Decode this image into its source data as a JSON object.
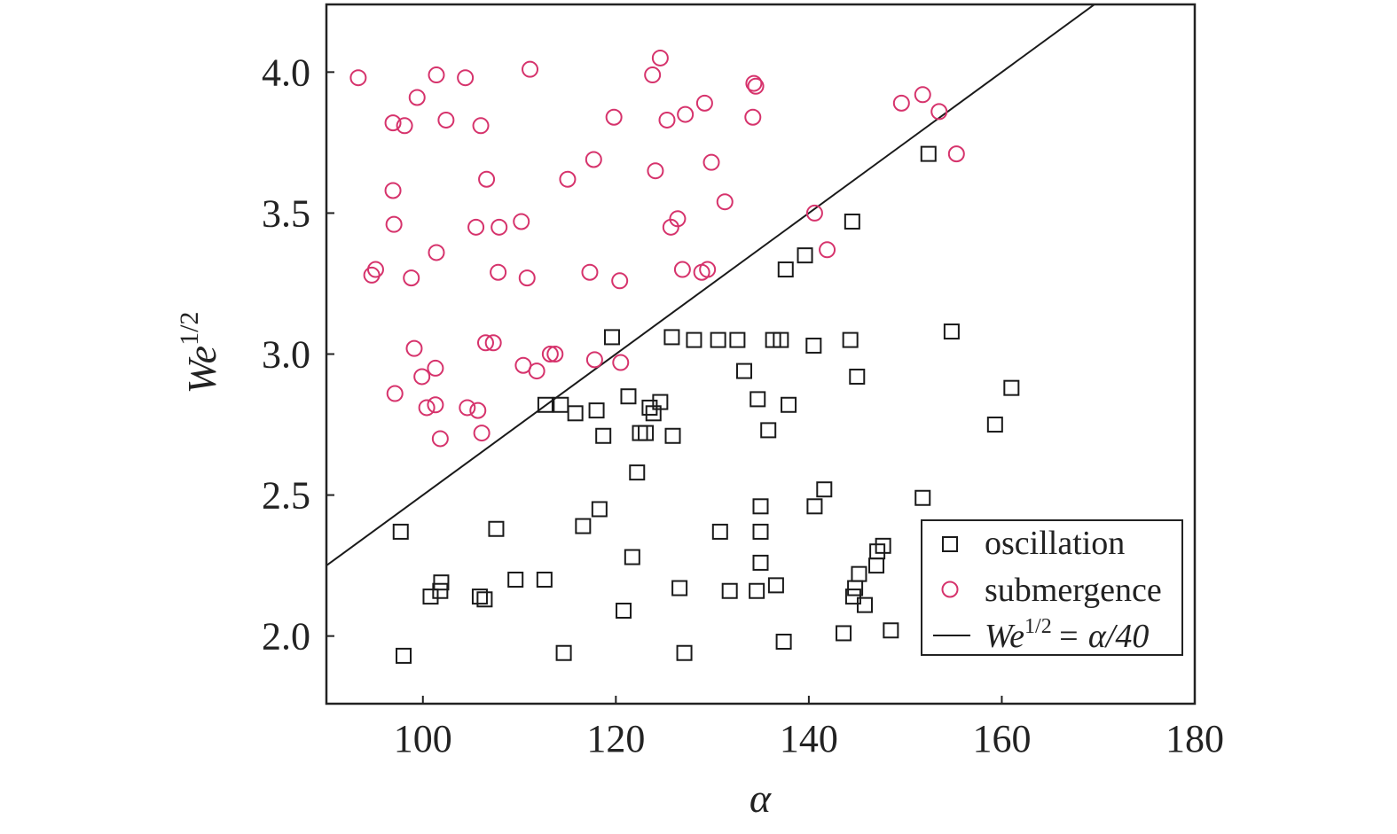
{
  "chart_data": {
    "type": "scatter",
    "xlabel": "α",
    "ylabel_base": "We",
    "ylabel_sup": "1/2",
    "xlim": [
      90,
      180
    ],
    "ylim": [
      1.76,
      4.24
    ],
    "xticks": [
      100,
      120,
      140,
      160,
      180
    ],
    "xtick_labels": [
      "100",
      "120",
      "140",
      "160",
      "180"
    ],
    "yticks": [
      2.0,
      2.5,
      3.0,
      3.5,
      4.0
    ],
    "ytick_labels": [
      "2.0",
      "2.5",
      "3.0",
      "3.5",
      "4.0"
    ],
    "grid": false,
    "legend_position": "bottom-right",
    "colors": {
      "oscillation": "#1a1a1a",
      "submergence": "#d6336c",
      "line": "#1a1a1a"
    },
    "series": [
      {
        "name": "oscillation",
        "marker": "square",
        "points": [
          [
            97.7,
            2.37
          ],
          [
            98.0,
            1.93
          ],
          [
            100.8,
            2.14
          ],
          [
            101.8,
            2.16
          ],
          [
            101.9,
            2.19
          ],
          [
            105.9,
            2.14
          ],
          [
            106.4,
            2.13
          ],
          [
            107.6,
            2.38
          ],
          [
            109.6,
            2.2
          ],
          [
            112.6,
            2.2
          ],
          [
            112.7,
            2.82
          ],
          [
            114.3,
            2.82
          ],
          [
            114.6,
            1.94
          ],
          [
            115.8,
            2.79
          ],
          [
            116.6,
            2.39
          ],
          [
            118.0,
            2.8
          ],
          [
            118.3,
            2.45
          ],
          [
            118.7,
            2.71
          ],
          [
            119.6,
            3.06
          ],
          [
            120.8,
            2.09
          ],
          [
            121.3,
            2.85
          ],
          [
            121.7,
            2.28
          ],
          [
            122.2,
            2.58
          ],
          [
            122.5,
            2.72
          ],
          [
            123.1,
            2.72
          ],
          [
            123.5,
            2.81
          ],
          [
            123.9,
            2.79
          ],
          [
            124.6,
            2.83
          ],
          [
            125.8,
            3.06
          ],
          [
            125.9,
            2.71
          ],
          [
            126.6,
            2.17
          ],
          [
            127.1,
            1.94
          ],
          [
            128.1,
            3.05
          ],
          [
            130.6,
            3.05
          ],
          [
            130.8,
            2.37
          ],
          [
            131.8,
            2.16
          ],
          [
            132.6,
            3.05
          ],
          [
            133.3,
            2.94
          ],
          [
            134.6,
            2.16
          ],
          [
            134.7,
            2.84
          ],
          [
            135.0,
            2.46
          ],
          [
            135.0,
            2.37
          ],
          [
            135.0,
            2.26
          ],
          [
            135.8,
            2.73
          ],
          [
            136.3,
            3.05
          ],
          [
            136.6,
            2.18
          ],
          [
            137.1,
            3.05
          ],
          [
            137.4,
            1.98
          ],
          [
            137.6,
            3.3
          ],
          [
            137.9,
            2.82
          ],
          [
            139.6,
            3.35
          ],
          [
            140.5,
            3.03
          ],
          [
            140.6,
            2.46
          ],
          [
            141.6,
            2.52
          ],
          [
            143.6,
            2.01
          ],
          [
            144.3,
            3.05
          ],
          [
            144.5,
            3.47
          ],
          [
            144.6,
            2.14
          ],
          [
            144.8,
            2.17
          ],
          [
            145.0,
            2.92
          ],
          [
            145.2,
            2.22
          ],
          [
            145.8,
            2.11
          ],
          [
            147.0,
            2.25
          ],
          [
            147.1,
            2.3
          ],
          [
            147.7,
            2.32
          ],
          [
            148.5,
            2.02
          ],
          [
            151.8,
            2.49
          ],
          [
            152.4,
            3.71
          ],
          [
            154.8,
            3.08
          ],
          [
            159.3,
            2.75
          ],
          [
            161.0,
            2.88
          ]
        ]
      },
      {
        "name": "submergence",
        "marker": "circle",
        "points": [
          [
            93.3,
            3.98
          ],
          [
            94.7,
            3.28
          ],
          [
            95.1,
            3.3
          ],
          [
            96.9,
            3.82
          ],
          [
            96.9,
            3.58
          ],
          [
            97.0,
            3.46
          ],
          [
            97.1,
            2.86
          ],
          [
            98.1,
            3.81
          ],
          [
            98.8,
            3.27
          ],
          [
            99.1,
            3.02
          ],
          [
            99.4,
            3.91
          ],
          [
            99.9,
            2.92
          ],
          [
            100.4,
            2.81
          ],
          [
            101.3,
            2.82
          ],
          [
            101.3,
            2.95
          ],
          [
            101.4,
            3.99
          ],
          [
            101.4,
            3.36
          ],
          [
            101.8,
            2.7
          ],
          [
            102.4,
            3.83
          ],
          [
            104.4,
            3.98
          ],
          [
            104.6,
            2.81
          ],
          [
            105.5,
            3.45
          ],
          [
            105.7,
            2.8
          ],
          [
            106.0,
            3.81
          ],
          [
            106.1,
            2.72
          ],
          [
            106.5,
            3.04
          ],
          [
            106.6,
            3.62
          ],
          [
            107.3,
            3.04
          ],
          [
            107.8,
            3.29
          ],
          [
            107.9,
            3.45
          ],
          [
            110.2,
            3.47
          ],
          [
            110.4,
            2.96
          ],
          [
            110.8,
            3.27
          ],
          [
            111.1,
            4.01
          ],
          [
            111.8,
            2.94
          ],
          [
            113.2,
            3.0
          ],
          [
            113.7,
            3.0
          ],
          [
            115.0,
            3.62
          ],
          [
            117.3,
            3.29
          ],
          [
            117.7,
            3.69
          ],
          [
            117.8,
            2.98
          ],
          [
            119.8,
            3.84
          ],
          [
            120.4,
            3.26
          ],
          [
            120.5,
            2.97
          ],
          [
            123.8,
            3.99
          ],
          [
            124.1,
            3.65
          ],
          [
            124.6,
            4.05
          ],
          [
            125.3,
            3.83
          ],
          [
            125.7,
            3.45
          ],
          [
            126.4,
            3.48
          ],
          [
            126.9,
            3.3
          ],
          [
            127.2,
            3.85
          ],
          [
            128.9,
            3.29
          ],
          [
            129.2,
            3.89
          ],
          [
            129.5,
            3.3
          ],
          [
            129.9,
            3.68
          ],
          [
            131.3,
            3.54
          ],
          [
            134.2,
            3.84
          ],
          [
            134.3,
            3.96
          ],
          [
            134.5,
            3.95
          ],
          [
            140.6,
            3.5
          ],
          [
            141.9,
            3.37
          ],
          [
            149.6,
            3.89
          ],
          [
            151.8,
            3.92
          ],
          [
            153.5,
            3.86
          ],
          [
            155.3,
            3.71
          ]
        ]
      }
    ],
    "line": {
      "name": "We^1/2 = α/40",
      "x": [
        90,
        170
      ],
      "y": [
        2.25,
        4.25
      ]
    },
    "legend": {
      "oscillation": "oscillation",
      "submergence": "submergence",
      "line_lhs_base": "We",
      "line_lhs_sup": "1/2",
      "line_rhs": "= α/40"
    }
  }
}
